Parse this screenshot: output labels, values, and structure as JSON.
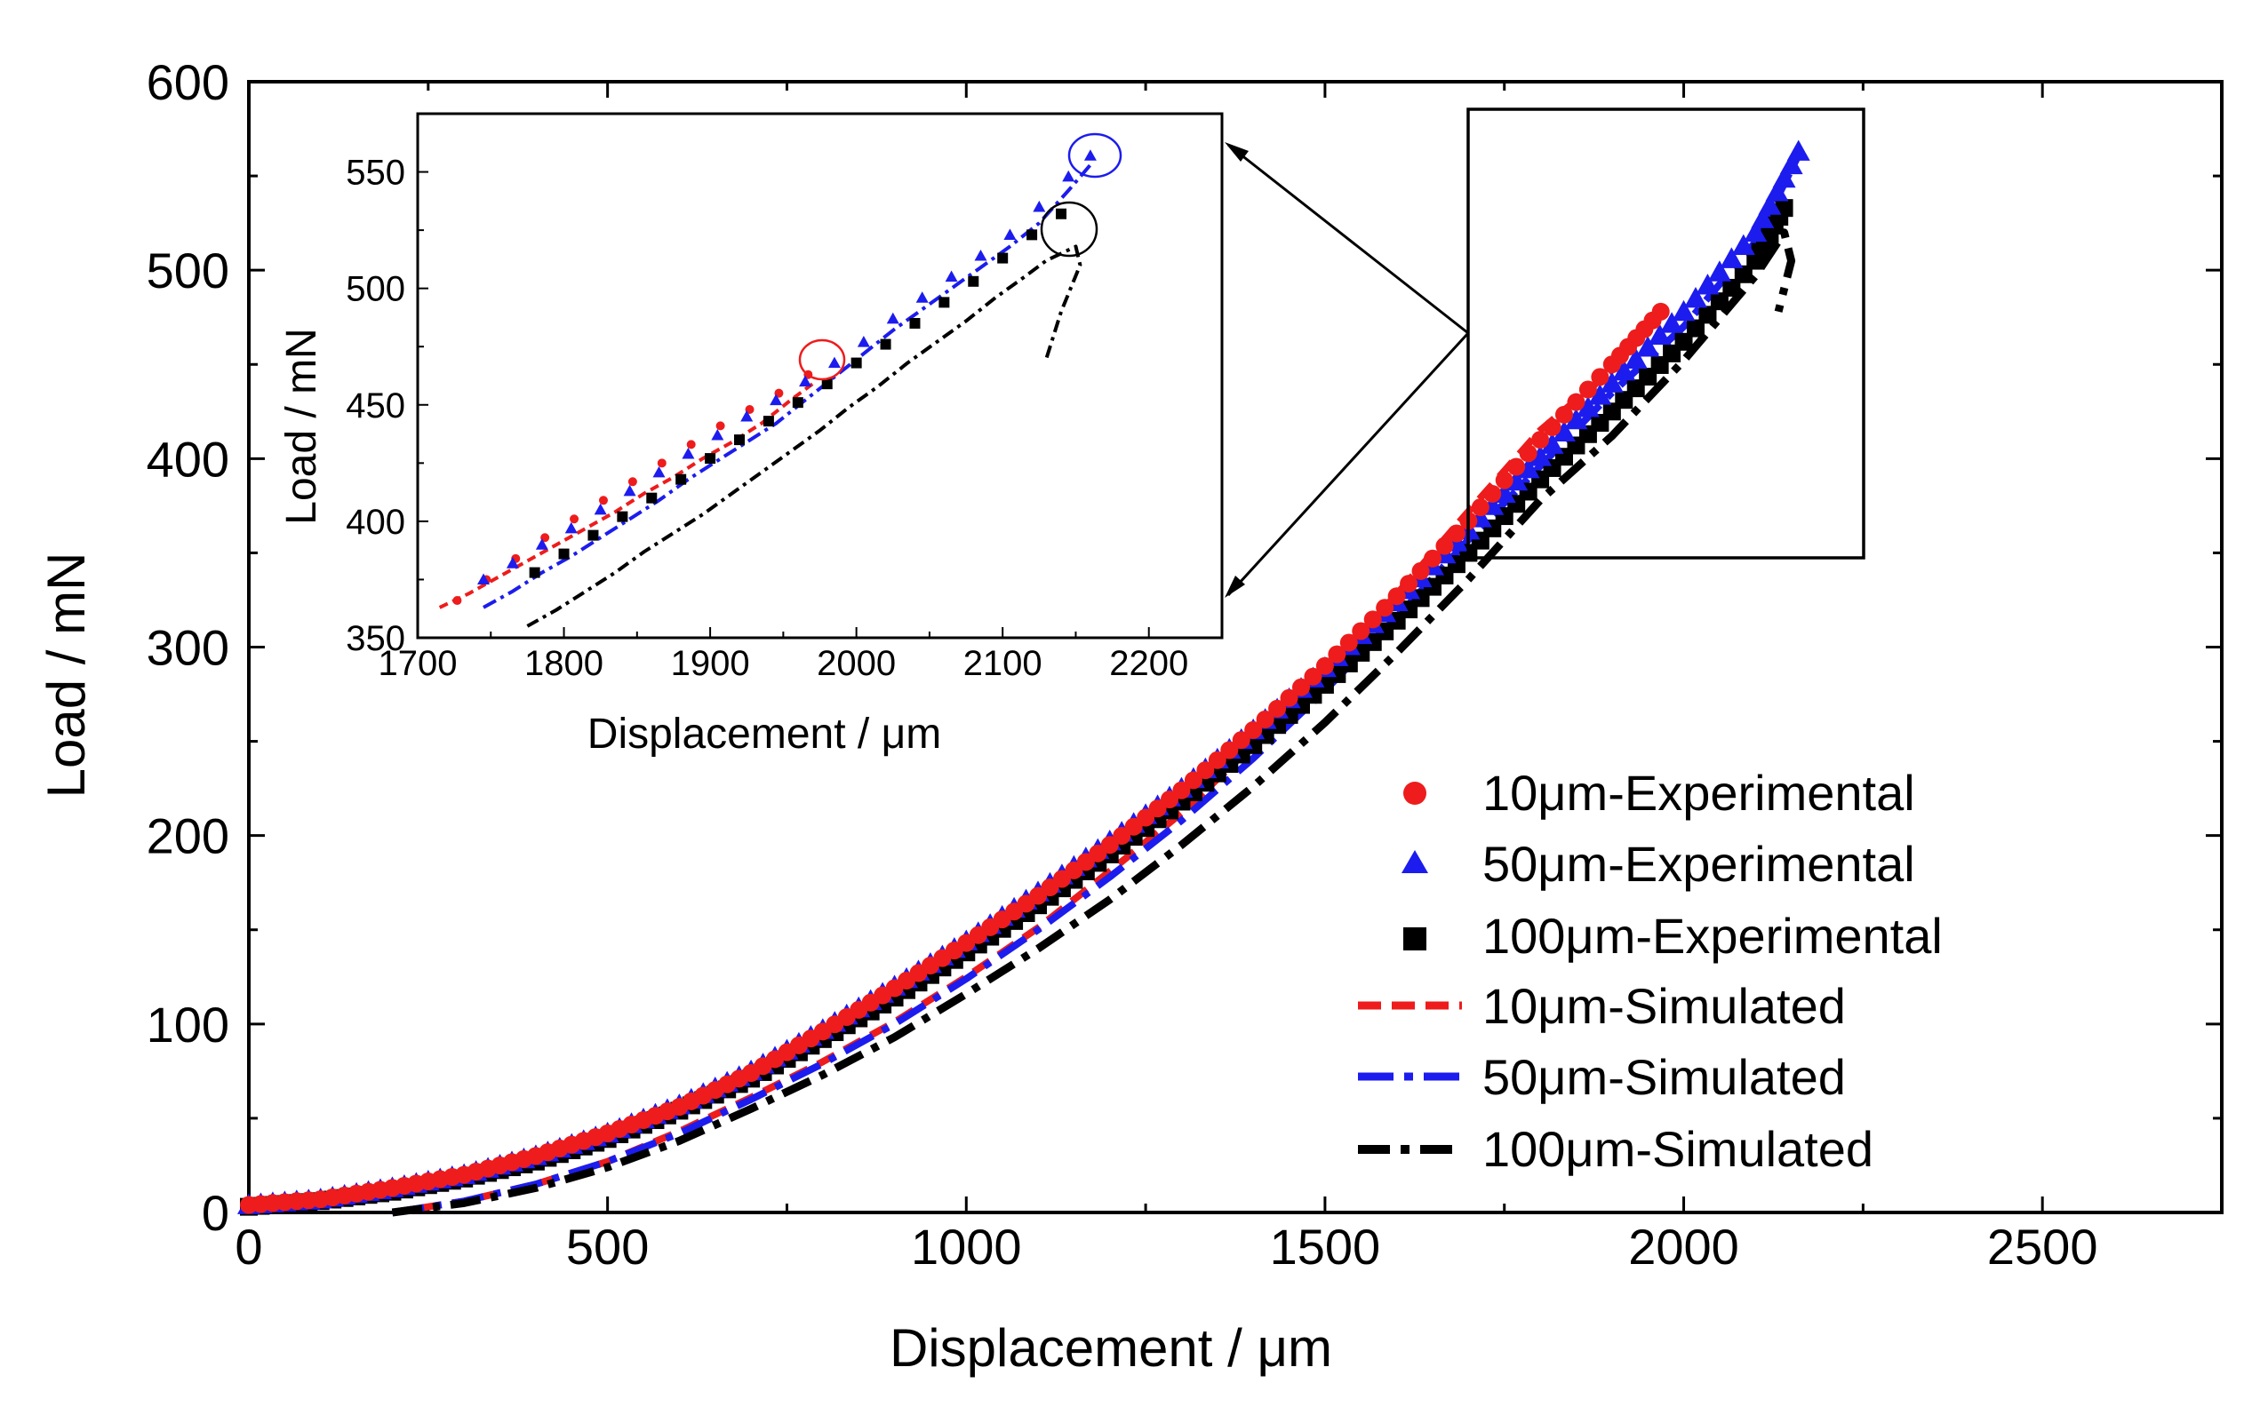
{
  "chart_data": [
    {
      "id": "main",
      "type": "scatter",
      "xlabel": "Displacement / μm",
      "ylabel": "Load / mN",
      "xlim": [
        0,
        2750
      ],
      "ylim": [
        0,
        600
      ],
      "xticks": [
        "0",
        "500",
        "1000",
        "1500",
        "2000",
        "2500"
      ],
      "yticks": [
        "0",
        "100",
        "200",
        "300",
        "400",
        "500",
        "600"
      ],
      "series": [
        {
          "name": "10μm-Experimental",
          "style": "marker",
          "marker": "circle",
          "color": "#ee1c1c",
          "points": [
            [
              0,
              4
            ],
            [
              100,
              7
            ],
            [
              200,
              13
            ],
            [
              300,
              20
            ],
            [
              400,
              30
            ],
            [
              500,
              42
            ],
            [
              600,
              56
            ],
            [
              700,
              74
            ],
            [
              800,
              96
            ],
            [
              900,
              119
            ],
            [
              1000,
              143
            ],
            [
              1100,
              168
            ],
            [
              1200,
              195
            ],
            [
              1300,
              224
            ],
            [
              1400,
              256
            ],
            [
              1500,
              290
            ],
            [
              1600,
              327
            ],
            [
              1700,
              367
            ],
            [
              1800,
              410
            ],
            [
              1900,
              450
            ],
            [
              1968,
              478
            ]
          ]
        },
        {
          "name": "50μm-Experimental",
          "style": "marker",
          "marker": "triangle",
          "color": "#1c1cee",
          "points": [
            [
              0,
              4
            ],
            [
              100,
              7
            ],
            [
              200,
              13
            ],
            [
              300,
              20
            ],
            [
              400,
              30
            ],
            [
              500,
              42
            ],
            [
              600,
              57
            ],
            [
              700,
              75
            ],
            [
              800,
              97
            ],
            [
              900,
              120
            ],
            [
              1000,
              144
            ],
            [
              1100,
              170
            ],
            [
              1200,
              197
            ],
            [
              1300,
              225
            ],
            [
              1400,
              256
            ],
            [
              1500,
              289
            ],
            [
              1600,
              324
            ],
            [
              1700,
              362
            ],
            [
              1800,
              401
            ],
            [
              1900,
              440
            ],
            [
              2000,
              478
            ],
            [
              2100,
              520
            ],
            [
              2160,
              563
            ]
          ]
        },
        {
          "name": "100μm-Experimental",
          "style": "marker",
          "marker": "square",
          "color": "#000000",
          "points": [
            [
              0,
              3
            ],
            [
              100,
              6
            ],
            [
              200,
              11
            ],
            [
              300,
              18
            ],
            [
              400,
              27
            ],
            [
              500,
              39
            ],
            [
              600,
              54
            ],
            [
              700,
              71
            ],
            [
              800,
              92
            ],
            [
              900,
              114
            ],
            [
              1000,
              138
            ],
            [
              1100,
              163
            ],
            [
              1200,
              190
            ],
            [
              1300,
              218
            ],
            [
              1400,
              248
            ],
            [
              1500,
              280
            ],
            [
              1600,
              314
            ],
            [
              1700,
              350
            ],
            [
              1800,
              389
            ],
            [
              1900,
              425
            ],
            [
              2000,
              462
            ],
            [
              2100,
              505
            ],
            [
              2140,
              533
            ]
          ]
        },
        {
          "name": "10μm-Simulated",
          "style": "dashed",
          "color": "#ee1c1c",
          "points": [
            [
              200,
              0
            ],
            [
              300,
              6
            ],
            [
              400,
              15
            ],
            [
              500,
              27
            ],
            [
              600,
              43
            ],
            [
              700,
              61
            ],
            [
              800,
              80
            ],
            [
              900,
              101
            ],
            [
              1000,
              125
            ],
            [
              1100,
              151
            ],
            [
              1200,
              181
            ],
            [
              1300,
              212
            ],
            [
              1400,
              248
            ],
            [
              1500,
              287
            ],
            [
              1600,
              328
            ],
            [
              1700,
              372
            ],
            [
              1800,
              415
            ],
            [
              1900,
              447
            ],
            [
              1968,
              478
            ]
          ]
        },
        {
          "name": "50μm-Simulated",
          "style": "dashdot",
          "color": "#1c1cee",
          "points": [
            [
              200,
              0
            ],
            [
              300,
              6
            ],
            [
              400,
              15
            ],
            [
              500,
              27
            ],
            [
              600,
              42
            ],
            [
              700,
              60
            ],
            [
              800,
              79
            ],
            [
              900,
              100
            ],
            [
              1000,
              124
            ],
            [
              1100,
              150
            ],
            [
              1200,
              178
            ],
            [
              1300,
              208
            ],
            [
              1400,
              241
            ],
            [
              1500,
              277
            ],
            [
              1600,
              316
            ],
            [
              1700,
              357
            ],
            [
              1800,
              396
            ],
            [
              1900,
              435
            ],
            [
              2000,
              470
            ],
            [
              2100,
              515
            ],
            [
              2160,
              561
            ]
          ]
        },
        {
          "name": "100μm-Simulated",
          "style": "dashdotbold",
          "color": "#000000",
          "points": [
            [
              200,
              0
            ],
            [
              300,
              5
            ],
            [
              400,
              13
            ],
            [
              500,
              24
            ],
            [
              600,
              38
            ],
            [
              700,
              55
            ],
            [
              800,
              73
            ],
            [
              900,
              93
            ],
            [
              1000,
              116
            ],
            [
              1100,
              140
            ],
            [
              1200,
              166
            ],
            [
              1300,
              195
            ],
            [
              1400,
              226
            ],
            [
              1500,
              260
            ],
            [
              1600,
              297
            ],
            [
              1700,
              336
            ],
            [
              1800,
              378
            ],
            [
              1900,
              412
            ],
            [
              2000,
              452
            ],
            [
              2100,
              497
            ],
            [
              2140,
              520
            ],
            [
              2150,
              505
            ],
            [
              2132,
              478
            ]
          ]
        }
      ]
    },
    {
      "id": "inset",
      "type": "scatter",
      "xlabel": "Displacement / μm",
      "ylabel": "Load / mN",
      "xlim": [
        1700,
        2250
      ],
      "ylim": [
        350,
        575
      ],
      "xticks": [
        "1700",
        "1800",
        "1900",
        "2000",
        "2100",
        "2200"
      ],
      "yticks": [
        "350",
        "400",
        "450",
        "500",
        "550"
      ],
      "series": [
        {
          "name": "10μm-Experimental",
          "style": "marker",
          "marker": "circle",
          "color": "#ee1c1c",
          "points": [
            [
              1727,
              366
            ],
            [
              1747,
              375
            ],
            [
              1767,
              384
            ],
            [
              1787,
              393
            ],
            [
              1807,
              401
            ],
            [
              1827,
              409
            ],
            [
              1847,
              417
            ],
            [
              1867,
              425
            ],
            [
              1887,
              433
            ],
            [
              1907,
              441
            ],
            [
              1927,
              448
            ],
            [
              1947,
              455
            ],
            [
              1967,
              463
            ]
          ]
        },
        {
          "name": "50μm-Experimental",
          "style": "marker",
          "marker": "triangle",
          "color": "#1c1cee",
          "points": [
            [
              1745,
              375
            ],
            [
              1765,
              382
            ],
            [
              1785,
              390
            ],
            [
              1805,
              397
            ],
            [
              1825,
              405
            ],
            [
              1845,
              413
            ],
            [
              1865,
              421
            ],
            [
              1885,
              429
            ],
            [
              1905,
              437
            ],
            [
              1925,
              445
            ],
            [
              1945,
              452
            ],
            [
              1965,
              460
            ],
            [
              1985,
              468
            ],
            [
              2005,
              477
            ],
            [
              2025,
              487
            ],
            [
              2045,
              496
            ],
            [
              2065,
              505
            ],
            [
              2085,
              514
            ],
            [
              2105,
              523
            ],
            [
              2125,
              535
            ],
            [
              2145,
              548
            ],
            [
              2160,
              557
            ]
          ]
        },
        {
          "name": "100μm-Experimental",
          "style": "marker",
          "marker": "square",
          "color": "#000000",
          "points": [
            [
              1780,
              378
            ],
            [
              1800,
              386
            ],
            [
              1820,
              394
            ],
            [
              1840,
              402
            ],
            [
              1860,
              410
            ],
            [
              1880,
              418
            ],
            [
              1900,
              427
            ],
            [
              1920,
              435
            ],
            [
              1940,
              443
            ],
            [
              1960,
              451
            ],
            [
              1980,
              459
            ],
            [
              2000,
              468
            ],
            [
              2020,
              476
            ],
            [
              2040,
              485
            ],
            [
              2060,
              494
            ],
            [
              2080,
              503
            ],
            [
              2100,
              513
            ],
            [
              2120,
              523
            ],
            [
              2140,
              532
            ]
          ]
        },
        {
          "name": "10μm-Simulated",
          "style": "dashed",
          "color": "#ee1c1c",
          "points": [
            [
              1715,
              363
            ],
            [
              1735,
              369
            ],
            [
              1755,
              376
            ],
            [
              1775,
              383
            ],
            [
              1795,
              390
            ],
            [
              1815,
              397
            ],
            [
              1835,
              404
            ],
            [
              1855,
              412
            ],
            [
              1875,
              419
            ],
            [
              1895,
              427
            ],
            [
              1915,
              434
            ],
            [
              1935,
              442
            ],
            [
              1955,
              452
            ],
            [
              1970,
              459
            ]
          ]
        },
        {
          "name": "50μm-Simulated",
          "style": "dashdot",
          "color": "#1c1cee",
          "points": [
            [
              1745,
              363
            ],
            [
              1765,
              370
            ],
            [
              1785,
              378
            ],
            [
              1805,
              385
            ],
            [
              1825,
              393
            ],
            [
              1845,
              401
            ],
            [
              1865,
              409
            ],
            [
              1885,
              418
            ],
            [
              1905,
              426
            ],
            [
              1925,
              434
            ],
            [
              1945,
              442
            ],
            [
              1965,
              452
            ],
            [
              1985,
              462
            ],
            [
              2005,
              472
            ],
            [
              2025,
              482
            ],
            [
              2045,
              491
            ],
            [
              2065,
              500
            ],
            [
              2085,
              509
            ],
            [
              2105,
              518
            ],
            [
              2125,
              528
            ],
            [
              2145,
              542
            ],
            [
              2160,
              553
            ]
          ]
        },
        {
          "name": "100μm-Simulated",
          "style": "dashdotbold",
          "color": "#000000",
          "points": [
            [
              1775,
              355
            ],
            [
              1795,
              362
            ],
            [
              1815,
              370
            ],
            [
              1835,
              378
            ],
            [
              1855,
              387
            ],
            [
              1875,
              395
            ],
            [
              1895,
              403
            ],
            [
              1915,
              412
            ],
            [
              1935,
              421
            ],
            [
              1955,
              430
            ],
            [
              1975,
              439
            ],
            [
              1995,
              449
            ],
            [
              2015,
              458
            ],
            [
              2035,
              468
            ],
            [
              2055,
              477
            ],
            [
              2075,
              486
            ],
            [
              2095,
              496
            ],
            [
              2115,
              505
            ],
            [
              2130,
              512
            ],
            [
              2150,
              518
            ],
            [
              2153,
              510
            ],
            [
              2140,
              490
            ],
            [
              2130,
              470
            ]
          ]
        }
      ]
    }
  ],
  "legend": {
    "entries": [
      "10μm-Experimental",
      "50μm-Experimental",
      "100μm-Experimental",
      "10μm-Simulated",
      "50μm-Simulated",
      "100μm-Simulated"
    ]
  },
  "colors": {
    "red": "#ee1c1c",
    "blue": "#1c1cee",
    "black": "#000000"
  }
}
